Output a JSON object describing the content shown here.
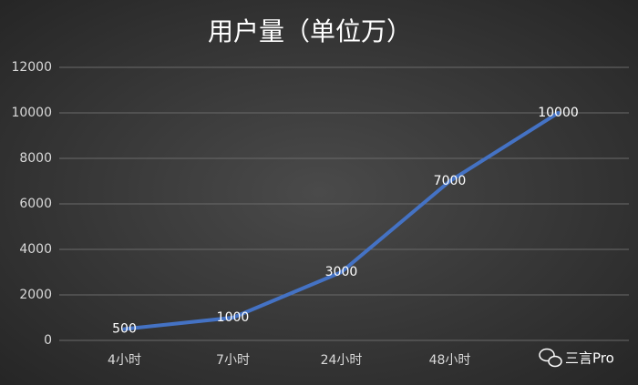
{
  "chart_data": {
    "type": "line",
    "title": "用户量（单位万）",
    "categories": [
      "4小时",
      "7小时",
      "24小时",
      "48小时",
      null
    ],
    "series": [
      {
        "name": "用户量",
        "color": "#4472c4",
        "values": [
          500,
          1000,
          3000,
          7000,
          10000
        ]
      }
    ],
    "ylim": [
      0,
      12000
    ],
    "yticks": [
      0,
      2000,
      4000,
      6000,
      8000,
      10000,
      12000
    ],
    "grid": true
  },
  "watermark": "三言Pro"
}
